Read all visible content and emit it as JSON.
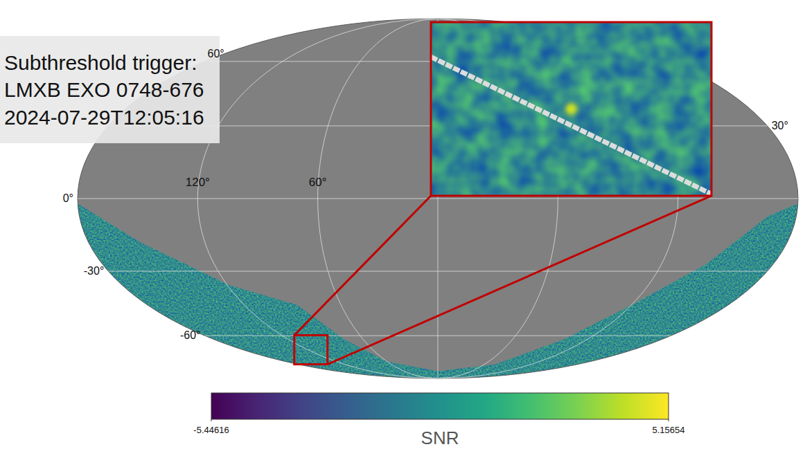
{
  "chart_data": {
    "type": "sky_map",
    "annotation": [
      "Subthreshold trigger:",
      "LMXB EXO 0748-676",
      "2024-07-29T12:05:16"
    ],
    "xlim": [
      180,
      -180
    ],
    "ylim": [
      -90,
      90
    ],
    "xticks": [
      {
        "value": 120,
        "label": "120°"
      },
      {
        "value": 60,
        "label": "60°"
      }
    ],
    "yticks": [
      {
        "value": 60,
        "label": "60°"
      },
      {
        "value": 30,
        "label": "30°"
      },
      {
        "value": 0,
        "label": "0°"
      },
      {
        "value": -30,
        "label": "-30°"
      },
      {
        "value": -60,
        "label": "-60°"
      }
    ],
    "grid": true,
    "coverage": {
      "lon": [
        180,
        153,
        119,
        87,
        75,
        60,
        0,
        -74,
        -101,
        -120,
        -144,
        -166,
        -180
      ],
      "lat": [
        -2,
        -18,
        -36,
        -45,
        -62,
        -75,
        -82,
        -77,
        -62,
        -45,
        -27,
        -7,
        -2
      ]
    },
    "trigger": {
      "lon": 117.14,
      "lat": -67.75,
      "snr": 4.3
    },
    "colorbar": {
      "label": "SNR",
      "range": [
        -5.44616,
        5.15654
      ],
      "ticks": [
        -5.44616,
        5.15654
      ]
    }
  }
}
